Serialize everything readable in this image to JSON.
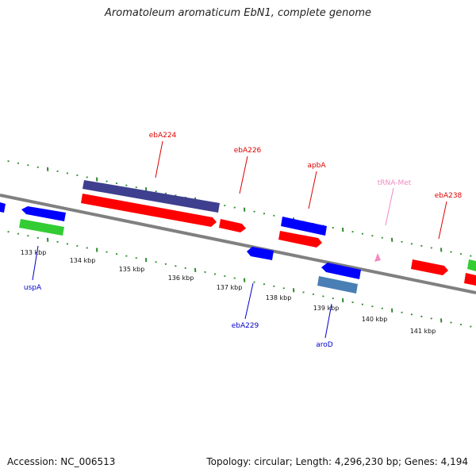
{
  "title": "Aromatoleum aromaticum EbN1, complete genome",
  "footer": {
    "accession": "Accession: NC_006513",
    "summary": "Topology: circular; Length: 4,296,230 bp; Genes: 4,194"
  },
  "colors": {
    "backbone": "#808080",
    "tick": "#2e8b2e",
    "gene_red": "#ff0000",
    "gene_blue": "#0000ff",
    "gene_green": "#33cc33",
    "gene_purple": "#3f3f8f",
    "gene_steel": "#4a7fb5",
    "trna_pink": "#f08ac0",
    "label_red": "#dd0000",
    "label_blue": "#0000cc",
    "label_pink": "#f08ac0"
  },
  "axis": {
    "tick_labels": [
      "133 kbp",
      "134 kbp",
      "135 kbp",
      "136 kbp",
      "137 kbp",
      "138 kbp",
      "139 kbp",
      "140 kbp",
      "141 kbp"
    ]
  },
  "gene_labels": {
    "ebA224": "ebA224",
    "ebA226": "ebA226",
    "apbA": "apbA",
    "tRNA_Met": "tRNA-Met",
    "ebA238": "ebA238",
    "uspA": "uspA",
    "ebA229": "ebA229",
    "aroD": "aroD"
  }
}
